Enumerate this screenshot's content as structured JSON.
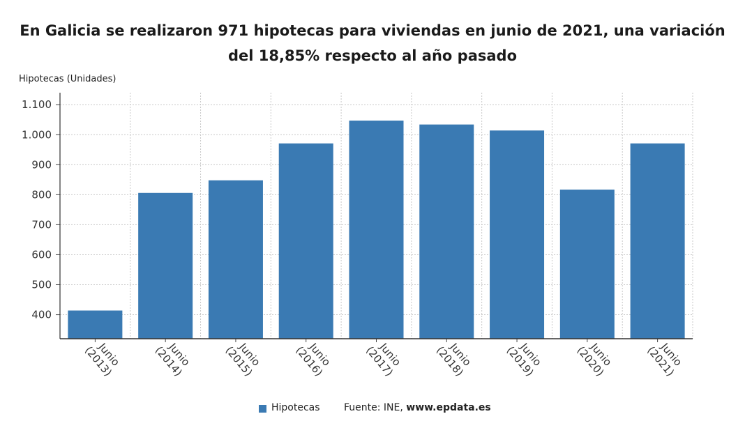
{
  "title_line1": "En Galicia se realizaron 971 hipotecas para viviendas en junio de 2021, una variación",
  "title_line2": "del 18,85% respecto al año pasado",
  "y_axis_title": "Hipotecas (Unidades)",
  "legend": {
    "label": "Hipotecas",
    "color": "#3a7ab3"
  },
  "source": {
    "prefix": "Fuente: INE, ",
    "site": "www.epdata.es"
  },
  "chart_data": {
    "type": "bar",
    "categories": [
      [
        "Junio",
        "(2013)"
      ],
      [
        "Junio",
        "(2014)"
      ],
      [
        "Junio",
        "(2015)"
      ],
      [
        "Junio",
        "(2016)"
      ],
      [
        "Junio",
        "(2017)"
      ],
      [
        "Junio",
        "(2018)"
      ],
      [
        "Junio",
        "(2019)"
      ],
      [
        "Junio",
        "(2020)"
      ],
      [
        "Junio",
        "(2021)"
      ]
    ],
    "series": [
      {
        "name": "Hipotecas",
        "values": [
          414,
          806,
          848,
          971,
          1047,
          1034,
          1014,
          817,
          971
        ]
      }
    ],
    "ylabel": "Hipotecas (Unidades)",
    "ylim": [
      320,
      1140
    ],
    "yticks": [
      400,
      500,
      600,
      700,
      800,
      900,
      1000,
      1100
    ],
    "ytick_labels": [
      "400",
      "500",
      "600",
      "700",
      "800",
      "900",
      "1.000",
      "1.100"
    ],
    "grid": true,
    "legend_position": "bottom",
    "bar_color": "#3a7ab3"
  }
}
